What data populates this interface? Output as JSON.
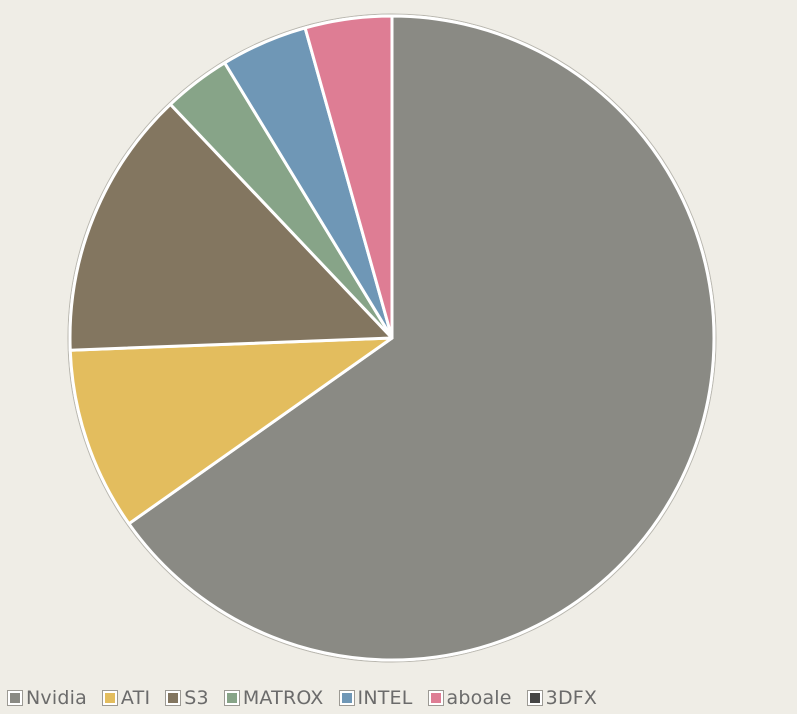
{
  "chart_data": {
    "type": "pie",
    "categories": [
      "Nvidia",
      "ATI",
      "S3",
      "MATROX",
      "INTEL",
      "aboale",
      "3DFX"
    ],
    "values": [
      67.5,
      9.5,
      14.0,
      3.5,
      4.5,
      4.5,
      0.0
    ],
    "colors": [
      "#8a8a84",
      "#e3bd5e",
      "#837660",
      "#87a488",
      "#6f97b6",
      "#de7d94",
      "#454545"
    ],
    "legend_position": "bottom",
    "start_angle_deg": 0,
    "direction": "clockwise"
  }
}
